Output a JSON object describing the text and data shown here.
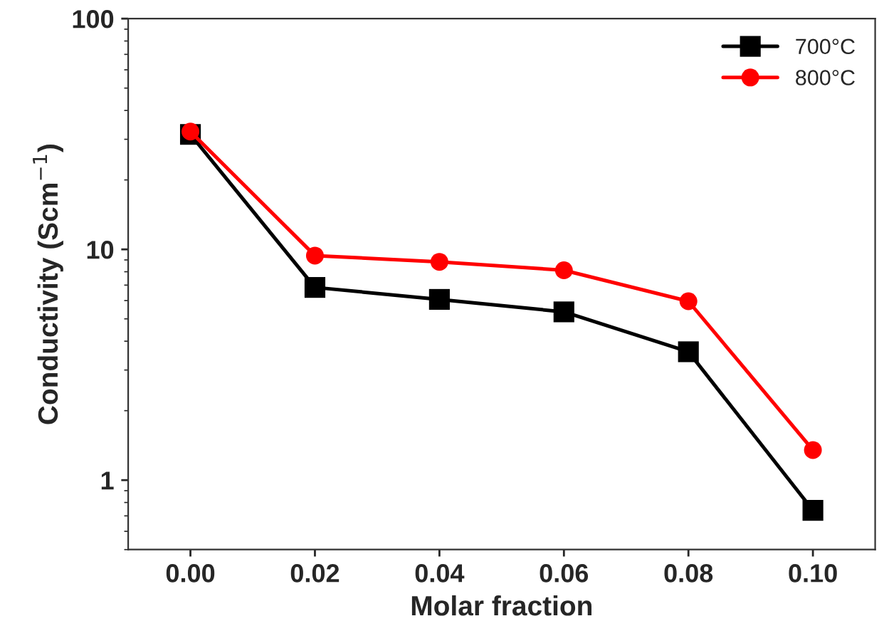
{
  "chart_data": {
    "type": "line",
    "xlabel": "Molar fraction",
    "ylabel": "Conductivity (Scm$^{−1}$)",
    "x": [
      0.0,
      0.02,
      0.04,
      0.06,
      0.08,
      0.1
    ],
    "series": [
      {
        "name": "700°C",
        "color": "#000000",
        "marker": "square",
        "values": [
          31.5,
          6.84,
          6.07,
          5.36,
          3.6,
          0.74
        ]
      },
      {
        "name": "800°C",
        "color": "#ff0000",
        "marker": "circle",
        "values": [
          32.4,
          9.4,
          8.83,
          8.12,
          5.96,
          1.35
        ]
      }
    ],
    "log": "y",
    "xlim": [
      -0.01,
      0.11
    ],
    "ylim": [
      0.5,
      100
    ],
    "xticks": [
      {
        "value": 0.0,
        "label": "0.00"
      },
      {
        "value": 0.02,
        "label": "0.02"
      },
      {
        "value": 0.04,
        "label": "0.04"
      },
      {
        "value": 0.06,
        "label": "0.06"
      },
      {
        "value": 0.08,
        "label": "0.08"
      },
      {
        "value": 0.1,
        "label": "0.10"
      }
    ],
    "yticks": [
      1,
      10,
      100
    ],
    "grid": false,
    "legend": "top right",
    "line_style": "solid"
  }
}
